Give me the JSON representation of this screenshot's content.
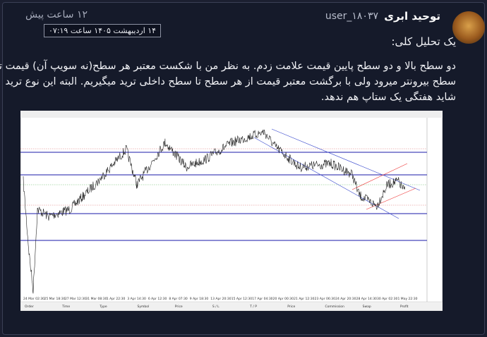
{
  "post": {
    "author": {
      "name": "توحید ابری",
      "handle": "user_۱۸۰۳۷"
    },
    "time": "۱۲ ساعت پیش",
    "time_tooltip": "۱۴ اردیبهشت ۱۴۰۵ ساعت ۰۷:۱۹",
    "heading": "یک تحلیل کلی:",
    "body_lines": [
      "دو سطح بالا و دو سطح پایین قیمت علامت زدم. به نظر من با شکست معتبر هر سطح(نه سویپ آن) قیمت تا",
      "سطح بیرونتر میرود ولی با برگشت معتبر قیمت از هر سطح تا سطح داخلی ترید میگیریم. البته این نوع ترید",
      "شاید هفتگی یک ستاپ هم ندهد."
    ],
    "attachment": {
      "x_labels": [
        "24 Mar 02:30",
        "25 Mar 18:30",
        "27 Mar 12:30",
        "31 Mar 08:30",
        "1 Apr 22:30",
        "3 Apr 14:30",
        "6 Apr 12:30",
        "8 Apr 07:30",
        "9 Apr 18:30",
        "13 Apr 20:30",
        "15 Apr 12:30",
        "17 Apr 04:30",
        "20 Apr 00:30",
        "21 Apr 12:30",
        "23 Apr 06:30",
        "24 Apr 20:30",
        "28 Apr 14:30",
        "30 Apr 02:30",
        "1 May 22:30"
      ],
      "terminal_columns": [
        "Order",
        "Time",
        "Type",
        "Symbol",
        "Price",
        "S / L",
        "T / P",
        "Price",
        "Commission",
        "Swap",
        "Profit"
      ]
    }
  }
}
